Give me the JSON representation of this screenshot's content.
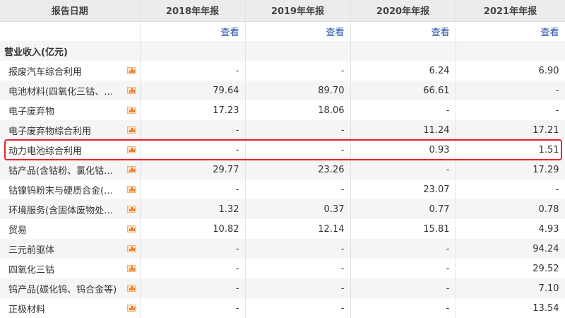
{
  "header": {
    "label": "报告日期",
    "years": [
      "2018年年报",
      "2019年年报",
      "2020年年报",
      "2021年年报"
    ]
  },
  "view_label": "查看",
  "section": "营业收入(亿元)",
  "rows": [
    {
      "name": "报废汽车综合利用",
      "values": [
        "-",
        "-",
        "6.24",
        "6.90"
      ]
    },
    {
      "name": "电池材料(四氧化三钴、…",
      "values": [
        "79.64",
        "89.70",
        "66.61",
        "-"
      ]
    },
    {
      "name": "电子废弃物",
      "values": [
        "17.23",
        "18.06",
        "-",
        "-"
      ]
    },
    {
      "name": "电子废弃物综合利用",
      "values": [
        "-",
        "-",
        "11.24",
        "17.21"
      ]
    },
    {
      "name": "动力电池综合利用",
      "values": [
        "-",
        "-",
        "0.93",
        "1.51"
      ],
      "highlighted": true
    },
    {
      "name": "钴产品(含钴粉、氯化钴…",
      "values": [
        "29.77",
        "23.26",
        "-",
        "17.29"
      ]
    },
    {
      "name": "钴镍钨粉末与硬质合金(…",
      "values": [
        "-",
        "-",
        "23.07",
        "-"
      ]
    },
    {
      "name": "环境服务(含固体废物处…",
      "values": [
        "1.32",
        "0.37",
        "0.77",
        "0.78"
      ]
    },
    {
      "name": "贸易",
      "values": [
        "10.82",
        "12.14",
        "15.81",
        "4.93"
      ]
    },
    {
      "name": "三元前驱体",
      "values": [
        "-",
        "-",
        "-",
        "94.24"
      ]
    },
    {
      "name": "四氧化三钴",
      "values": [
        "-",
        "-",
        "-",
        "29.52"
      ]
    },
    {
      "name": "钨产品(碳化钨、钨合金等)",
      "values": [
        "-",
        "-",
        "-",
        "7.10"
      ]
    },
    {
      "name": "正极材料",
      "values": [
        "-",
        "-",
        "-",
        "13.54"
      ]
    }
  ],
  "colors": {
    "highlight": "#e8242a",
    "link": "#1f4fa3",
    "icon": "#e8681a"
  },
  "row_icon": "bar-chart-icon"
}
